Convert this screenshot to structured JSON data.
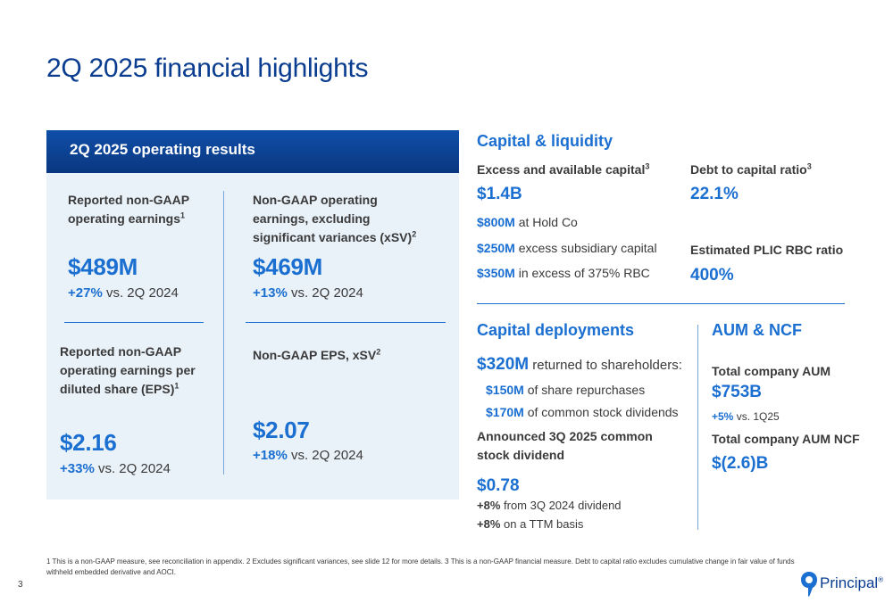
{
  "title": "2Q 2025 financial highlights",
  "operating": {
    "header": "2Q 2025 operating results",
    "reported_label": "Reported non-GAAP operating earnings",
    "reported_sup": "1",
    "reported_value": "$489M",
    "reported_change": "+27%",
    "reported_cmp": " vs. 2Q 2024",
    "xsv_label": "Non-GAAP operating earnings, excluding significant variances (xSV)",
    "xsv_sup": "2",
    "xsv_value": "$469M",
    "xsv_change": "+13%",
    "xsv_cmp": " vs. 2Q 2024",
    "eps_label": "Reported non-GAAP operating earnings per diluted share (EPS)",
    "eps_sup": "1",
    "eps_value": "$2.16",
    "eps_change": "+33%",
    "eps_cmp": " vs. 2Q 2024",
    "eps_xsv_label": "Non-GAAP EPS, xSV",
    "eps_xsv_sup": "2",
    "eps_xsv_value": "$2.07",
    "eps_xsv_change": "+18%",
    "eps_xsv_cmp": " vs. 2Q 2024"
  },
  "capital": {
    "title": "Capital & liquidity",
    "excess_label": "Excess and available capital",
    "excess_sup": "3",
    "excess_value": "$1.4B",
    "items": [
      {
        "value": "$800M",
        "text": " at Hold Co"
      },
      {
        "value": "$250M",
        "text": " excess subsidiary capital"
      },
      {
        "value": "$350M",
        "text": " in excess of 375% RBC"
      }
    ],
    "debt_label": "Debt to capital ratio",
    "debt_sup": "3",
    "debt_value": "22.1%",
    "rbc_label": "Estimated PLIC RBC ratio",
    "rbc_value": "400%"
  },
  "deployments": {
    "title": "Capital deployments",
    "returned_value": "$320M",
    "returned_text": " returned to shareholders:",
    "repurchase_value": "$150M",
    "repurchase_text": " of share repurchases",
    "dividends_value": "$170M",
    "dividends_text": " of common stock dividends",
    "announced_label": "Announced 3Q 2025 common stock dividend",
    "dividend_value": "$0.78",
    "growth1_value": "+8%",
    "growth1_text": "  from 3Q 2024 dividend",
    "growth2_value": "+8%",
    "growth2_text": " on a TTM basis"
  },
  "aum": {
    "title": "AUM & NCF",
    "total_label": "Total company AUM",
    "total_value": "$753B",
    "total_change": "+5%",
    "total_cmp": " vs. 1Q25",
    "ncf_label": "Total company AUM NCF",
    "ncf_value": "$(2.6)B"
  },
  "footnote": "1 This is a non-GAAP measure, see reconciliation in appendix. 2 Excludes significant variances, see slide 12 for more details. 3 This is a non-GAAP financial measure. Debt to capital ratio excludes cumulative change in fair value of funds withheld embedded derivative and AOCI.",
  "page_number": "3",
  "logo": {
    "text": "Principal",
    "mark": "®"
  },
  "colors": {
    "navy": "#0a3d8f",
    "accent": "#1a6fd1",
    "panel": "#e9f1f9"
  }
}
